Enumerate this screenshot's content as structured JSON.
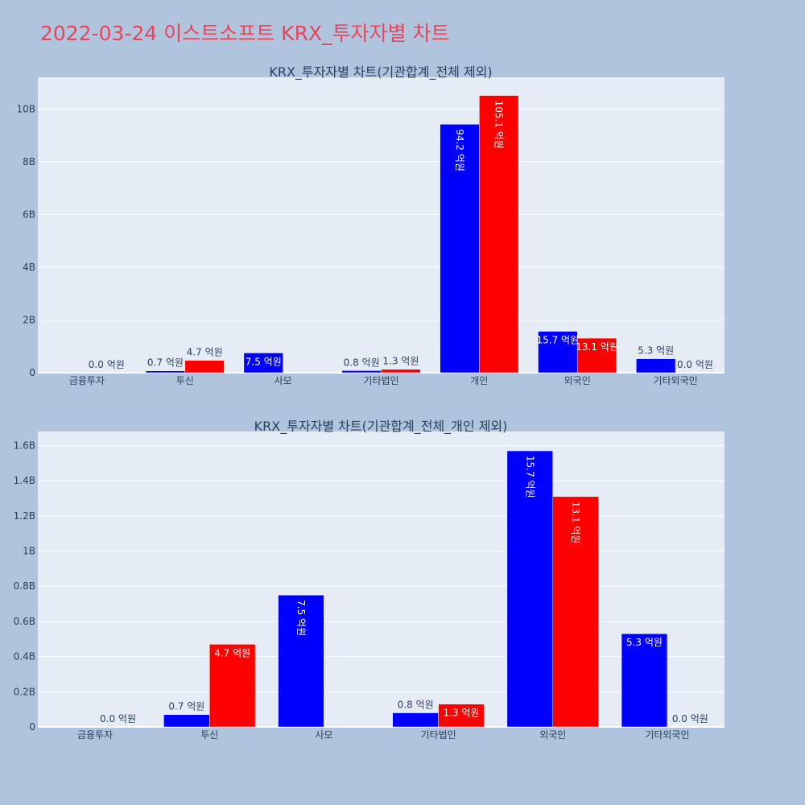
{
  "page": {
    "title": "2022-03-24 이스트소프트 KRX_투자자별 차트"
  },
  "colors": {
    "series_a": "#0000ff",
    "series_b": "#ff0000",
    "plot_bg": "#e5ecf6",
    "page_bg": "#b0c4de",
    "title": "#e8455a",
    "text": "#2a3f5f"
  },
  "chart_data": [
    {
      "type": "bar",
      "title": "KRX_투자자별 차트(기관합계_전체 제외)",
      "categories": [
        "금융투자",
        "투신",
        "사모",
        "기타법인",
        "개인",
        "외국인",
        "기타외국인"
      ],
      "series": [
        {
          "values": [
            null,
            70000000,
            750000000,
            80000000,
            9420000000,
            1570000000,
            530000000
          ],
          "labels": [
            "",
            "0.7 억원",
            "7.5 억원",
            "0.8 억원",
            "94.2 억원",
            "15.7 억원",
            "5.3 억원"
          ]
        },
        {
          "values": [
            0,
            470000000,
            null,
            130000000,
            10510000000,
            1310000000,
            0
          ],
          "labels": [
            "0.0 억원",
            "4.7 억원",
            "",
            "1.3 억원",
            "105.1 억원",
            "13.1 억원",
            "0.0 억원"
          ]
        }
      ],
      "ylim": [
        0,
        11200000000
      ],
      "yticks": [
        {
          "value": 0,
          "label": "0"
        },
        {
          "value": 2000000000,
          "label": "2B"
        },
        {
          "value": 4000000000,
          "label": "4B"
        },
        {
          "value": 6000000000,
          "label": "6B"
        },
        {
          "value": 8000000000,
          "label": "8B"
        },
        {
          "value": 10000000000,
          "label": "10B"
        }
      ],
      "grid": true,
      "legend": "none"
    },
    {
      "type": "bar",
      "title": "KRX_투자자별 차트(기관합계_전체_개인 제외)",
      "categories": [
        "금융투자",
        "투신",
        "사모",
        "기타법인",
        "외국인",
        "기타외국인"
      ],
      "series": [
        {
          "values": [
            null,
            70000000,
            750000000,
            80000000,
            1570000000,
            530000000
          ],
          "labels": [
            "",
            "0.7 억원",
            "7.5 억원",
            "0.8 억원",
            "15.7 억원",
            "5.3 억원"
          ]
        },
        {
          "values": [
            0,
            470000000,
            null,
            130000000,
            1310000000,
            0
          ],
          "labels": [
            "0.0 억원",
            "4.7 억원",
            "",
            "1.3 억원",
            "13.1 억원",
            "0.0 억원"
          ]
        }
      ],
      "ylim": [
        0,
        1680000000
      ],
      "yticks": [
        {
          "value": 0,
          "label": "0"
        },
        {
          "value": 200000000,
          "label": "0.2B"
        },
        {
          "value": 400000000,
          "label": "0.4B"
        },
        {
          "value": 600000000,
          "label": "0.6B"
        },
        {
          "value": 800000000,
          "label": "0.8B"
        },
        {
          "value": 1000000000,
          "label": "1B"
        },
        {
          "value": 1200000000,
          "label": "1.2B"
        },
        {
          "value": 1400000000,
          "label": "1.4B"
        },
        {
          "value": 1600000000,
          "label": "1.6B"
        }
      ],
      "grid": true,
      "legend": "none"
    }
  ]
}
